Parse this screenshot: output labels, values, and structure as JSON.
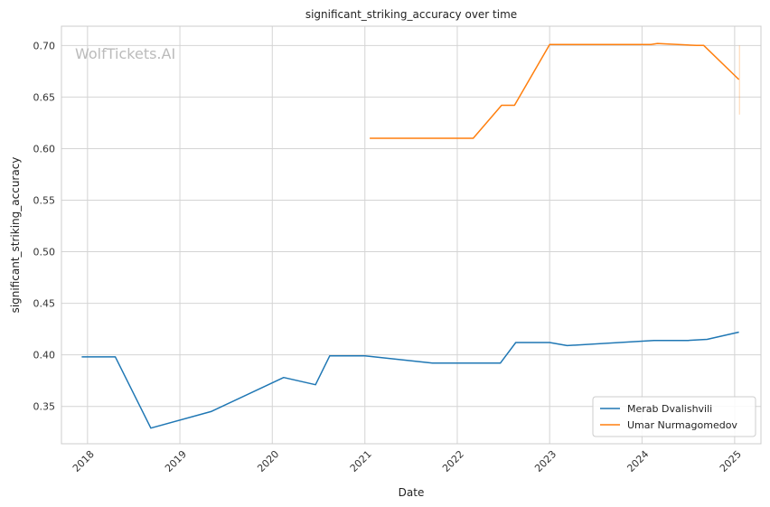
{
  "watermark": "WolfTickets.AI",
  "chart_data": {
    "type": "line",
    "title": "significant_striking_accuracy over time",
    "xlabel": "Date",
    "ylabel": "significant_striking_accuracy",
    "x_ticks": [
      "2018",
      "2019",
      "2020",
      "2021",
      "2022",
      "2023",
      "2024",
      "2025"
    ],
    "y_ticks": [
      "0.35",
      "0.40",
      "0.45",
      "0.50",
      "0.55",
      "0.60",
      "0.65",
      "0.70"
    ],
    "xlim": [
      "2017-09-20",
      "2025-04-15"
    ],
    "ylim": [
      0.3138,
      0.7187
    ],
    "grid": true,
    "legend_position": "lower-right",
    "series": [
      {
        "name": "Merab Dvalishvili",
        "color": "#1f77b4",
        "points": [
          [
            "2017-12-09",
            0.398
          ],
          [
            "2018-04-21",
            0.398
          ],
          [
            "2018-09-08",
            0.329
          ],
          [
            "2019-05-04",
            0.345
          ],
          [
            "2020-02-15",
            0.378
          ],
          [
            "2020-06-20",
            0.371
          ],
          [
            "2020-08-15",
            0.399
          ],
          [
            "2021-01-01",
            0.399
          ],
          [
            "2021-09-25",
            0.392
          ],
          [
            "2022-06-20",
            0.392
          ],
          [
            "2022-08-20",
            0.412
          ],
          [
            "2023-01-01",
            0.412
          ],
          [
            "2023-03-11",
            0.409
          ],
          [
            "2024-02-17",
            0.414
          ],
          [
            "2024-07-01",
            0.414
          ],
          [
            "2024-09-14",
            0.415
          ],
          [
            "2025-01-18",
            0.422
          ]
        ]
      },
      {
        "name": "Umar Nurmagomedov",
        "color": "#ff7f0e",
        "points": [
          [
            "2021-01-20",
            0.61
          ],
          [
            "2022-03-05",
            0.61
          ],
          [
            "2022-06-25",
            0.642
          ],
          [
            "2022-08-15",
            0.642
          ],
          [
            "2023-01-01",
            0.701
          ],
          [
            "2024-02-05",
            0.701
          ],
          [
            "2024-03-02",
            0.702
          ],
          [
            "2024-08-03",
            0.7
          ],
          [
            "2024-09-01",
            0.7
          ],
          [
            "2025-01-18",
            0.667
          ]
        ]
      }
    ],
    "error_bar": {
      "series": "Umar Nurmagomedov",
      "x": "2025-01-20",
      "low": 0.633,
      "high": 0.7
    }
  }
}
